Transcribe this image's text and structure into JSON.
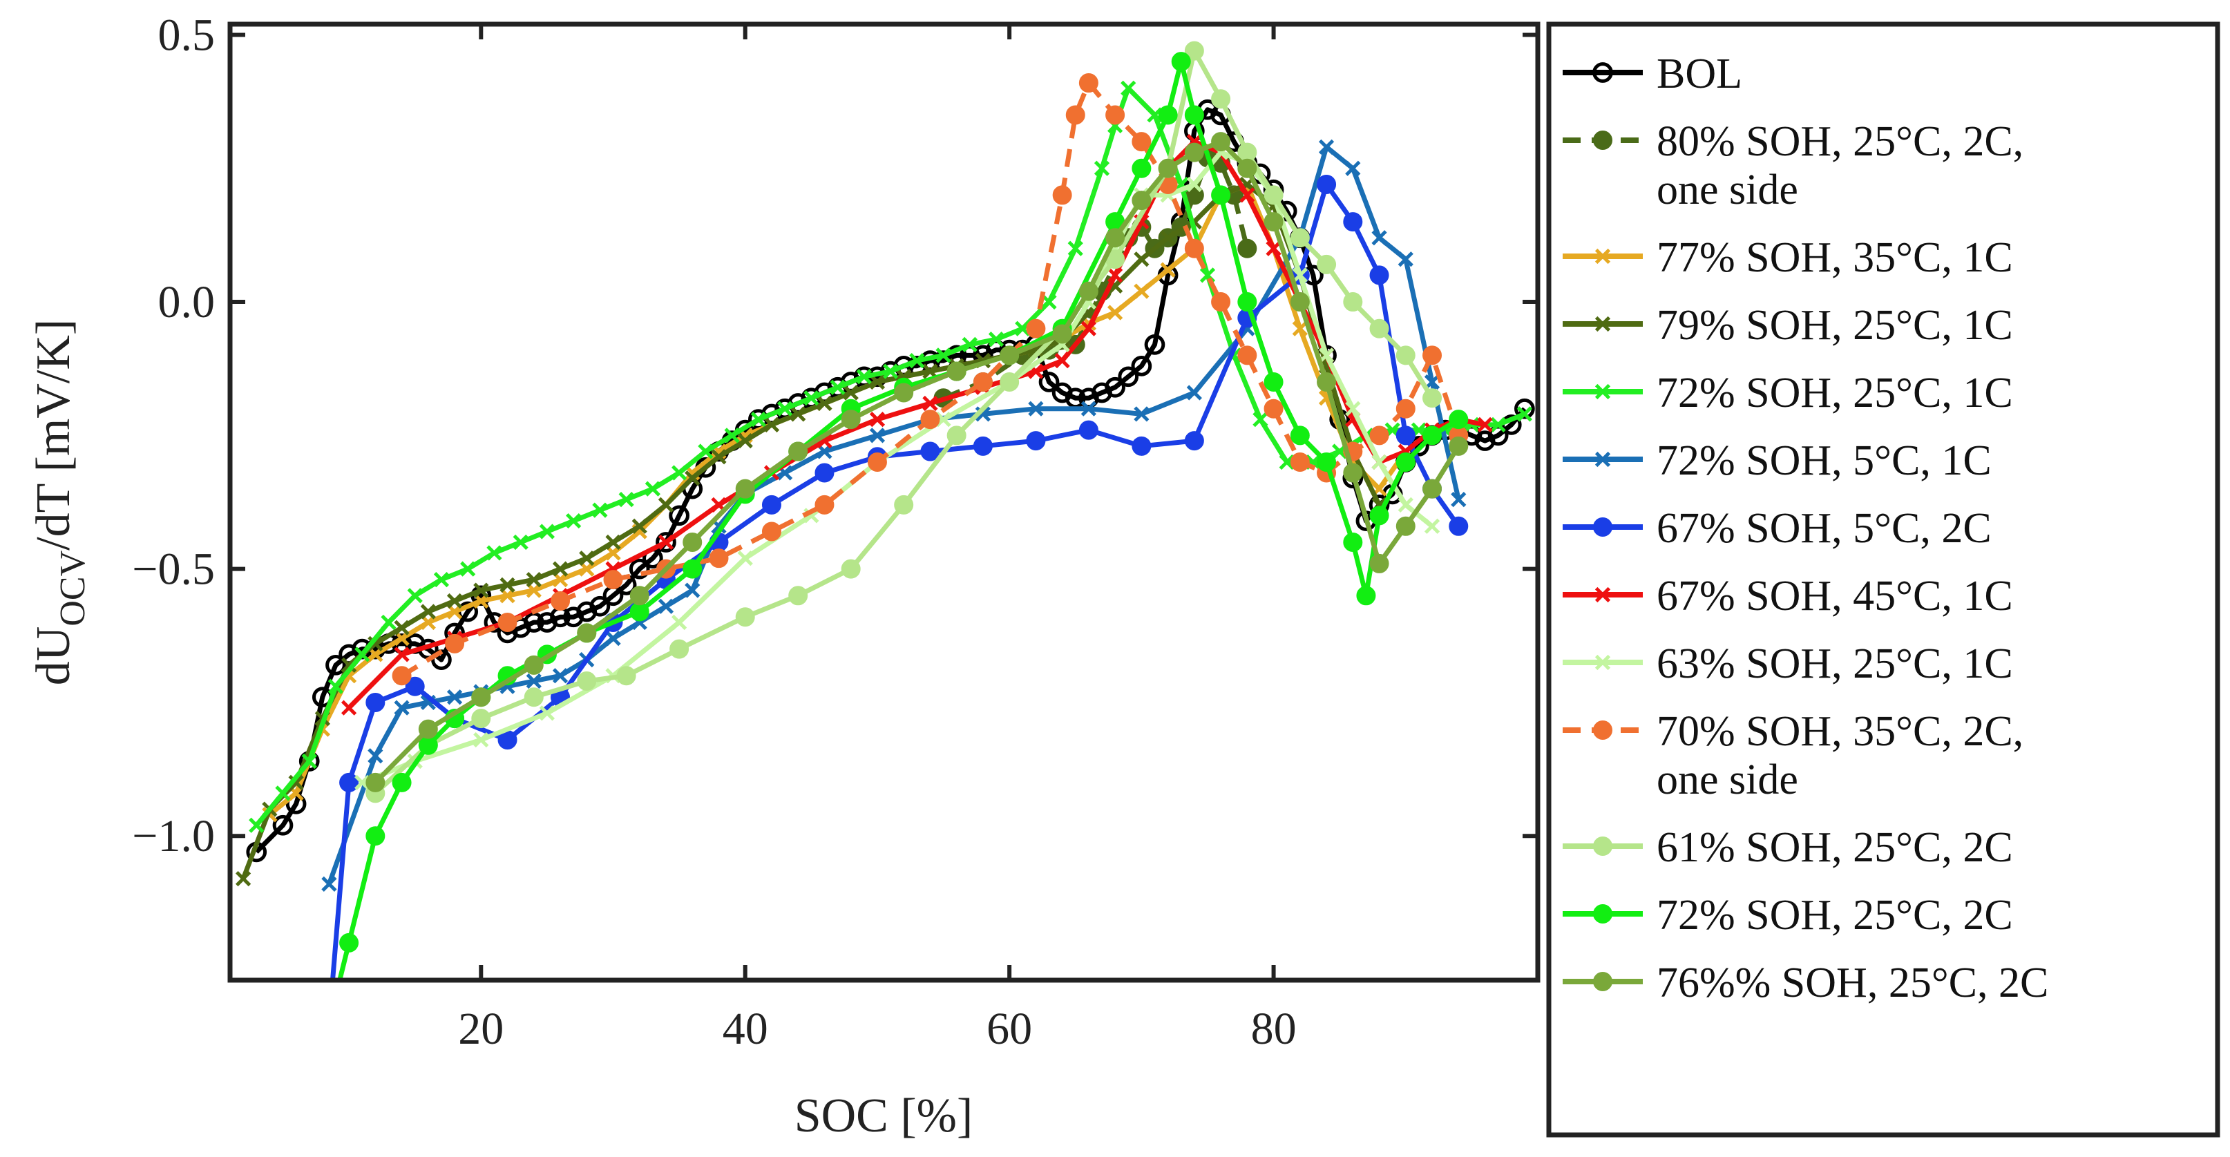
{
  "chart_data": {
    "type": "line",
    "title": "",
    "xlabel": "SOC [%]",
    "ylabel_main": "dU",
    "ylabel_sub": "OCV",
    "ylabel_rest": "/dT [mV/K]",
    "xlim": [
      1,
      100
    ],
    "ylim": [
      -1.27,
      0.52
    ],
    "x_ticks": [
      20,
      40,
      60,
      80
    ],
    "y_ticks": [
      0.5,
      0.0,
      -0.5,
      -1.0
    ],
    "x_tick_labels": [
      "20",
      "40",
      "60",
      "80"
    ],
    "y_tick_labels": [
      "0.5",
      "0.0",
      "−0.5",
      "−1.0"
    ],
    "legend_position": "outside-right",
    "series": [
      {
        "name": "BOL",
        "label_lines": [
          "BOL"
        ],
        "color": "#000000",
        "marker": "circle-open",
        "dashed": false,
        "x": [
          3,
          5,
          6,
          7,
          8,
          9,
          10,
          11,
          12,
          13,
          14,
          15,
          16,
          17,
          18,
          19,
          20,
          21,
          22,
          23,
          24,
          25,
          26,
          27,
          28,
          29,
          30,
          31,
          32,
          33,
          34,
          35,
          36,
          37,
          38,
          39,
          40,
          41,
          42,
          43,
          44,
          45,
          46,
          47,
          48,
          49,
          50,
          51,
          52,
          53,
          54,
          55,
          56,
          57,
          58,
          59,
          60,
          61,
          62,
          63,
          64,
          65,
          66,
          67,
          68,
          69,
          70,
          71,
          72,
          73,
          74,
          75,
          76,
          77,
          78,
          79,
          80,
          81,
          82,
          83,
          84,
          85,
          86,
          87,
          88,
          89,
          90,
          91,
          92,
          93,
          94,
          95,
          96,
          97,
          98,
          99
        ],
        "y": [
          -1.03,
          -0.98,
          -0.94,
          -0.86,
          -0.74,
          -0.68,
          -0.66,
          -0.65,
          -0.65,
          -0.64,
          -0.64,
          -0.64,
          -0.65,
          -0.67,
          -0.62,
          -0.58,
          -0.55,
          -0.6,
          -0.62,
          -0.61,
          -0.6,
          -0.6,
          -0.59,
          -0.59,
          -0.58,
          -0.57,
          -0.55,
          -0.53,
          -0.5,
          -0.48,
          -0.45,
          -0.4,
          -0.35,
          -0.31,
          -0.28,
          -0.26,
          -0.24,
          -0.22,
          -0.21,
          -0.2,
          -0.19,
          -0.18,
          -0.17,
          -0.16,
          -0.15,
          -0.14,
          -0.14,
          -0.13,
          -0.12,
          -0.12,
          -0.11,
          -0.11,
          -0.1,
          -0.1,
          -0.1,
          -0.09,
          -0.09,
          -0.09,
          -0.08,
          -0.15,
          -0.17,
          -0.18,
          -0.18,
          -0.17,
          -0.16,
          -0.14,
          -0.12,
          -0.08,
          0.05,
          0.15,
          0.32,
          0.36,
          0.35,
          0.3,
          0.26,
          0.24,
          0.21,
          0.17,
          0.12,
          0.05,
          -0.1,
          -0.22,
          -0.33,
          -0.41,
          -0.38,
          -0.36,
          -0.3,
          -0.27,
          -0.25,
          -0.24,
          -0.24,
          -0.25,
          -0.26,
          -0.25,
          -0.23,
          -0.2
        ]
      },
      {
        "name": "80% SOH, 25°C, 2C, one side",
        "label_lines": [
          "80% SOH, 25°C, 2C,",
          "one  side"
        ],
        "color": "#4a6b18",
        "marker": "circle",
        "dashed": true,
        "x": [
          55,
          58,
          61,
          63,
          65,
          67,
          69,
          70,
          71,
          72,
          73,
          74,
          75,
          76,
          77,
          78
        ],
        "y": [
          -0.18,
          -0.15,
          -0.1,
          -0.09,
          -0.08,
          0.02,
          0.12,
          0.14,
          0.1,
          0.12,
          0.14,
          0.2,
          0.27,
          0.26,
          0.2,
          0.1
        ]
      },
      {
        "name": "77% SOH, 35°C, 1C",
        "label_lines": [
          "77% SOH, 35°C, 1C"
        ],
        "color": "#e6a922",
        "marker": "x",
        "dashed": false,
        "x": [
          4,
          6,
          8,
          10,
          12,
          14,
          16,
          18,
          20,
          22,
          24,
          26,
          28,
          30,
          32,
          34,
          36,
          38,
          40,
          42,
          44,
          46,
          48,
          50,
          52,
          54,
          56,
          58,
          60,
          62,
          64,
          66,
          68,
          70,
          72,
          74,
          76,
          78,
          80,
          82,
          84,
          86,
          88,
          90
        ],
        "y": [
          -0.96,
          -0.92,
          -0.8,
          -0.7,
          -0.66,
          -0.63,
          -0.6,
          -0.58,
          -0.56,
          -0.55,
          -0.54,
          -0.52,
          -0.5,
          -0.47,
          -0.43,
          -0.38,
          -0.32,
          -0.28,
          -0.25,
          -0.23,
          -0.21,
          -0.19,
          -0.17,
          -0.15,
          -0.14,
          -0.13,
          -0.12,
          -0.11,
          -0.1,
          -0.09,
          -0.07,
          -0.04,
          -0.02,
          0.02,
          0.06,
          0.1,
          0.2,
          0.22,
          0.1,
          -0.05,
          -0.18,
          -0.3,
          -0.35,
          -0.28
        ]
      },
      {
        "name": "79% SOH, 25°C, 1C",
        "label_lines": [
          "79% SOH, 25°C, 1C"
        ],
        "color": "#4f6b12",
        "marker": "x",
        "dashed": false,
        "x": [
          2,
          4,
          6,
          8,
          10,
          12,
          14,
          16,
          18,
          20,
          22,
          24,
          26,
          28,
          30,
          32,
          34,
          36,
          38,
          40,
          42,
          44,
          46,
          48,
          50,
          52,
          54,
          56,
          58,
          60,
          62,
          64,
          66,
          68,
          70,
          72,
          74,
          76,
          78,
          80,
          82,
          84,
          86,
          88
        ],
        "y": [
          -1.08,
          -0.95,
          -0.9,
          -0.78,
          -0.68,
          -0.64,
          -0.61,
          -0.58,
          -0.56,
          -0.54,
          -0.53,
          -0.52,
          -0.5,
          -0.48,
          -0.45,
          -0.42,
          -0.38,
          -0.33,
          -0.29,
          -0.26,
          -0.23,
          -0.21,
          -0.19,
          -0.17,
          -0.15,
          -0.14,
          -0.13,
          -0.12,
          -0.11,
          -0.1,
          -0.09,
          -0.07,
          -0.02,
          0.03,
          0.08,
          0.12,
          0.15,
          0.2,
          0.22,
          0.18,
          0.05,
          -0.12,
          -0.28,
          -0.38
        ]
      },
      {
        "name": "72% SOH, 25°C, 1C",
        "label_lines": [
          "72% SOH, 25°C, 1C"
        ],
        "color": "#22ee22",
        "marker": "x",
        "dashed": false,
        "x": [
          3,
          5,
          7,
          9,
          11,
          13,
          15,
          17,
          19,
          21,
          23,
          25,
          27,
          29,
          31,
          33,
          35,
          37,
          39,
          41,
          43,
          45,
          47,
          49,
          51,
          53,
          55,
          57,
          59,
          61,
          63,
          65,
          67,
          68,
          69,
          71,
          73,
          75,
          77,
          79,
          81,
          83,
          85,
          87,
          89,
          91,
          93,
          95,
          97,
          99
        ],
        "y": [
          -0.98,
          -0.92,
          -0.86,
          -0.72,
          -0.66,
          -0.6,
          -0.55,
          -0.52,
          -0.5,
          -0.47,
          -0.45,
          -0.43,
          -0.41,
          -0.39,
          -0.37,
          -0.35,
          -0.32,
          -0.28,
          -0.25,
          -0.22,
          -0.2,
          -0.18,
          -0.16,
          -0.14,
          -0.13,
          -0.11,
          -0.1,
          -0.08,
          -0.07,
          -0.05,
          0.0,
          0.1,
          0.25,
          0.33,
          0.4,
          0.35,
          0.22,
          0.05,
          -0.1,
          -0.22,
          -0.3,
          -0.3,
          -0.28,
          -0.25,
          -0.24,
          -0.24,
          -0.24,
          -0.23,
          -0.23,
          -0.21
        ]
      },
      {
        "name": "72% SOH, 5°C, 1C",
        "label_lines": [
          "72% SOH, 5°C, 1C"
        ],
        "color": "#1a6fb5",
        "marker": "x",
        "dashed": false,
        "x": [
          8.5,
          12,
          14,
          16,
          18,
          20,
          22,
          24,
          26,
          28,
          30,
          32,
          34,
          36,
          38,
          40,
          43,
          46,
          50,
          54,
          58,
          62,
          66,
          70,
          74,
          78,
          82,
          84,
          86,
          88,
          90,
          92,
          94
        ],
        "y": [
          -1.09,
          -0.85,
          -0.76,
          -0.75,
          -0.74,
          -0.73,
          -0.72,
          -0.71,
          -0.7,
          -0.67,
          -0.63,
          -0.6,
          -0.57,
          -0.54,
          -0.42,
          -0.36,
          -0.32,
          -0.28,
          -0.25,
          -0.22,
          -0.21,
          -0.2,
          -0.2,
          -0.21,
          -0.17,
          -0.05,
          0.12,
          0.29,
          0.25,
          0.12,
          0.08,
          -0.15,
          -0.37
        ]
      },
      {
        "name": "67% SOH, 5°C, 2C",
        "label_lines": [
          "67% SOH, 5°C, 2C"
        ],
        "color": "#1a3ee6",
        "marker": "circle",
        "dashed": false,
        "x": [
          8.5,
          10,
          12,
          15,
          18,
          22,
          26,
          30,
          34,
          38,
          42,
          46,
          50,
          54,
          58,
          62,
          66,
          70,
          74,
          78,
          82,
          84,
          86,
          88,
          90,
          92,
          94
        ],
        "y": [
          -1.35,
          -0.9,
          -0.75,
          -0.72,
          -0.78,
          -0.82,
          -0.74,
          -0.6,
          -0.52,
          -0.45,
          -0.38,
          -0.32,
          -0.29,
          -0.28,
          -0.27,
          -0.26,
          -0.24,
          -0.27,
          -0.26,
          -0.03,
          0.05,
          0.22,
          0.15,
          0.05,
          -0.25,
          -0.35,
          -0.42
        ]
      },
      {
        "name": "67% SOH, 45°C, 1C",
        "label_lines": [
          "67% SOH, 45°C, 1C"
        ],
        "color": "#ee1010",
        "marker": "x",
        "dashed": false,
        "x": [
          10,
          14,
          18,
          22,
          26,
          30,
          34,
          38,
          42,
          46,
          50,
          54,
          58,
          62,
          64,
          66,
          68,
          70,
          72,
          74,
          76,
          78,
          80,
          82,
          84,
          86,
          88,
          90,
          92,
          94,
          96
        ],
        "y": [
          -0.76,
          -0.66,
          -0.63,
          -0.6,
          -0.55,
          -0.5,
          -0.45,
          -0.38,
          -0.32,
          -0.26,
          -0.22,
          -0.19,
          -0.16,
          -0.13,
          -0.11,
          -0.05,
          0.05,
          0.15,
          0.25,
          0.3,
          0.28,
          0.2,
          0.1,
          0.0,
          -0.1,
          -0.22,
          -0.3,
          -0.28,
          -0.24,
          -0.22,
          -0.23
        ]
      },
      {
        "name": "63% SOH, 25°C, 1C",
        "label_lines": [
          "63% SOH, 25°C, 1C"
        ],
        "color": "#c3f5a0",
        "marker": "x",
        "dashed": false,
        "x": [
          11,
          15,
          20,
          25,
          30,
          35,
          40,
          45,
          50,
          55,
          60,
          64,
          66,
          68,
          70,
          72,
          74,
          76,
          78,
          80,
          82,
          84,
          86,
          88,
          90,
          92
        ],
        "y": [
          -0.9,
          -0.86,
          -0.82,
          -0.77,
          -0.7,
          -0.6,
          -0.48,
          -0.4,
          -0.3,
          -0.22,
          -0.15,
          -0.08,
          0.0,
          0.1,
          0.2,
          0.2,
          0.22,
          0.28,
          0.26,
          0.2,
          0.05,
          -0.1,
          -0.2,
          -0.3,
          -0.38,
          -0.42
        ]
      },
      {
        "name": "70% SOH, 35°C, 2C, one side",
        "label_lines": [
          "70% SOH, 35°C, 2C,",
          "one  side"
        ],
        "color": "#f07030",
        "marker": "circle",
        "dashed": true,
        "x": [
          14,
          18,
          22,
          26,
          30,
          34,
          38,
          42,
          46,
          50,
          54,
          58,
          62,
          64,
          65,
          66,
          68,
          70,
          72,
          74,
          76,
          78,
          80,
          82,
          84,
          86,
          88,
          90,
          92,
          94
        ],
        "y": [
          -0.7,
          -0.64,
          -0.6,
          -0.56,
          -0.52,
          -0.5,
          -0.48,
          -0.43,
          -0.38,
          -0.3,
          -0.22,
          -0.15,
          -0.05,
          0.2,
          0.35,
          0.41,
          0.35,
          0.3,
          0.22,
          0.1,
          0.0,
          -0.1,
          -0.2,
          -0.3,
          -0.32,
          -0.28,
          -0.25,
          -0.2,
          -0.1,
          -0.25
        ]
      },
      {
        "name": "61% SOH, 25°C, 2C",
        "label_lines": [
          "61% SOH, 25°C, 2C"
        ],
        "color": "#b5e58a",
        "marker": "circle",
        "dashed": false,
        "x": [
          12,
          16,
          20,
          24,
          28,
          31,
          35,
          40,
          44,
          48,
          52,
          56,
          60,
          64,
          68,
          72,
          74,
          76,
          78,
          80,
          82,
          84,
          86,
          88,
          90,
          92
        ],
        "y": [
          -0.92,
          -0.83,
          -0.78,
          -0.74,
          -0.71,
          -0.7,
          -0.65,
          -0.59,
          -0.55,
          -0.5,
          -0.38,
          -0.25,
          -0.15,
          -0.05,
          0.08,
          0.25,
          0.47,
          0.38,
          0.28,
          0.2,
          0.12,
          0.07,
          0.0,
          -0.05,
          -0.1,
          -0.18
        ]
      },
      {
        "name": "72% SOH, 25°C, 2C",
        "label_lines": [
          "72% SOH, 25°C, 2C"
        ],
        "color": "#12ee12",
        "marker": "circle",
        "dashed": false,
        "x": [
          8.5,
          10,
          12,
          14,
          16,
          18,
          20,
          22,
          25,
          28,
          32,
          36,
          40,
          44,
          48,
          52,
          56,
          60,
          64,
          68,
          70,
          72,
          73,
          74,
          76,
          78,
          80,
          82,
          84,
          86,
          87,
          88,
          90,
          92,
          94
        ],
        "y": [
          -1.35,
          -1.2,
          -1.0,
          -0.9,
          -0.83,
          -0.78,
          -0.74,
          -0.7,
          -0.66,
          -0.62,
          -0.58,
          -0.5,
          -0.36,
          -0.28,
          -0.2,
          -0.16,
          -0.13,
          -0.1,
          -0.05,
          0.15,
          0.25,
          0.35,
          0.45,
          0.35,
          0.2,
          0.0,
          -0.15,
          -0.25,
          -0.3,
          -0.45,
          -0.55,
          -0.4,
          -0.3,
          -0.25,
          -0.22
        ]
      },
      {
        "name": "76%% SOH, 25°C, 2C",
        "label_lines": [
          "76%% SOH, 25°C, 2C"
        ],
        "color": "#7aa83a",
        "marker": "circle",
        "dashed": false,
        "x": [
          12,
          16,
          20,
          24,
          28,
          32,
          36,
          40,
          44,
          48,
          52,
          56,
          60,
          64,
          66,
          68,
          70,
          72,
          74,
          76,
          78,
          80,
          82,
          84,
          86,
          88,
          90,
          92,
          94
        ],
        "y": [
          -0.9,
          -0.8,
          -0.74,
          -0.68,
          -0.62,
          -0.55,
          -0.45,
          -0.35,
          -0.28,
          -0.22,
          -0.17,
          -0.13,
          -0.1,
          -0.06,
          0.02,
          0.12,
          0.19,
          0.25,
          0.28,
          0.3,
          0.25,
          0.15,
          0.0,
          -0.15,
          -0.32,
          -0.49,
          -0.42,
          -0.35,
          -0.27
        ]
      }
    ]
  }
}
